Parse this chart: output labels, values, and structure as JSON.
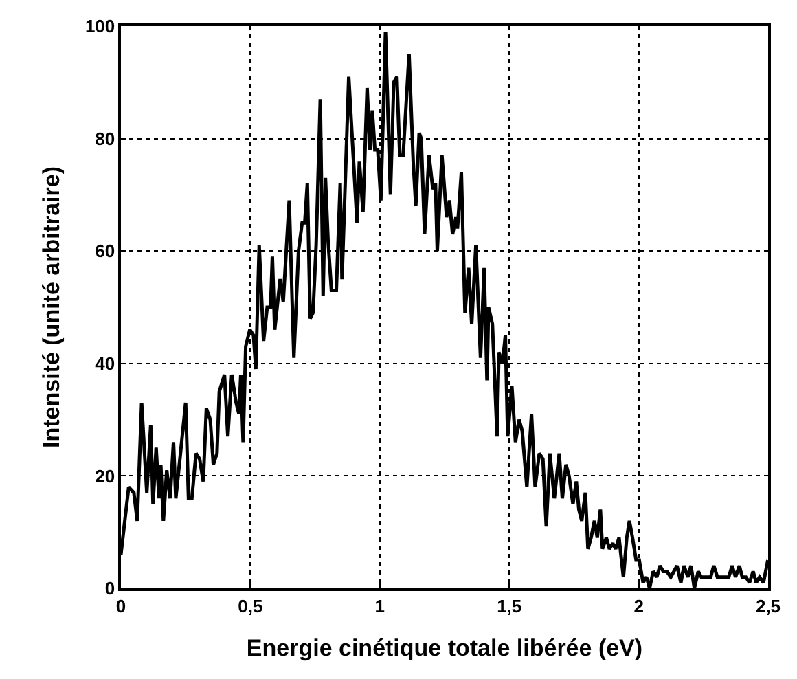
{
  "chart_data": {
    "type": "line",
    "xlabel": "Energie cinétique totale libérée (eV)",
    "ylabel": "Intensité (unité arbitraire)",
    "x": [
      0,
      0.03,
      0.05,
      0.063,
      0.08,
      0.1,
      0.115,
      0.124,
      0.136,
      0.147,
      0.154,
      0.164,
      0.177,
      0.19,
      0.203,
      0.212,
      0.23,
      0.25,
      0.261,
      0.274,
      0.29,
      0.304,
      0.318,
      0.33,
      0.345,
      0.357,
      0.371,
      0.38,
      0.4,
      0.413,
      0.428,
      0.445,
      0.456,
      0.463,
      0.472,
      0.482,
      0.498,
      0.512,
      0.521,
      0.534,
      0.551,
      0.565,
      0.578,
      0.585,
      0.594,
      0.615,
      0.627,
      0.65,
      0.668,
      0.686,
      0.7,
      0.71,
      0.72,
      0.731,
      0.742,
      0.754,
      0.77,
      0.781,
      0.79,
      0.8,
      0.813,
      0.832,
      0.847,
      0.854,
      0.88,
      0.912,
      0.921,
      0.935,
      0.951,
      0.962,
      0.971,
      0.981,
      0.992,
      1.004,
      1.022,
      1.041,
      1.054,
      1.066,
      1.077,
      1.09,
      1.113,
      1.129,
      1.139,
      1.152,
      1.16,
      1.173,
      1.19,
      1.205,
      1.215,
      1.222,
      1.24,
      1.258,
      1.269,
      1.281,
      1.294,
      1.3,
      1.315,
      1.329,
      1.343,
      1.355,
      1.371,
      1.389,
      1.403,
      1.414,
      1.42,
      1.435,
      1.453,
      1.46,
      1.474,
      1.485,
      1.494,
      1.51,
      1.524,
      1.538,
      1.55,
      1.568,
      1.586,
      1.6,
      1.616,
      1.63,
      1.643,
      1.657,
      1.674,
      1.693,
      1.705,
      1.719,
      1.731,
      1.746,
      1.759,
      1.769,
      1.78,
      1.794,
      1.804,
      1.816,
      1.829,
      1.84,
      1.852,
      1.86,
      1.875,
      1.887,
      1.9,
      1.911,
      1.924,
      1.941,
      1.954,
      1.964,
      1.976,
      1.99,
      2.002,
      2.017,
      2.03,
      2.042,
      2.056,
      2.07,
      2.082,
      2.095,
      2.109,
      2.124,
      2.136,
      2.148,
      2.163,
      2.175,
      2.19,
      2.202,
      2.215,
      2.23,
      2.242,
      2.26,
      2.278,
      2.29,
      2.304,
      2.318,
      2.33,
      2.348,
      2.361,
      2.374,
      2.389,
      2.4,
      2.414,
      2.428,
      2.442,
      2.454,
      2.467,
      2.482,
      2.499
    ],
    "series": [
      {
        "color": "#000000",
        "values": [
          6,
          18,
          17,
          12,
          33,
          17,
          29,
          15,
          25,
          16,
          22,
          12,
          21,
          16,
          26,
          16,
          24,
          33,
          16,
          16,
          24,
          23,
          19,
          32,
          30,
          22,
          24,
          35,
          38,
          27,
          38,
          33,
          31,
          38,
          26,
          43,
          46,
          45,
          39,
          61,
          44,
          50,
          50,
          59,
          46,
          55,
          51,
          69,
          41,
          60,
          65,
          65,
          72,
          48,
          49,
          61,
          87,
          52,
          73,
          62,
          53,
          53,
          72,
          55,
          91,
          65,
          76,
          67,
          89,
          78,
          85,
          78,
          78,
          69,
          99,
          70,
          90,
          91,
          77,
          77,
          95,
          76,
          68,
          81,
          80,
          63,
          77,
          71,
          72,
          60,
          77,
          66,
          69,
          63,
          66,
          64,
          74,
          49,
          57,
          47,
          61,
          41,
          57,
          37,
          50,
          47,
          27,
          42,
          40,
          45,
          27,
          36,
          26,
          30,
          28,
          18,
          31,
          18,
          24,
          23,
          11,
          24,
          16,
          24,
          16,
          22,
          20,
          15,
          19,
          14,
          12,
          17,
          7,
          9,
          12,
          9,
          14,
          7,
          9,
          7,
          8,
          7,
          9,
          2,
          9,
          12,
          9,
          5,
          5,
          1,
          2,
          0,
          3,
          2,
          4,
          3,
          3,
          2,
          3,
          4,
          1,
          4,
          2,
          4,
          0,
          3,
          2,
          2,
          2,
          4,
          2,
          2,
          2,
          2,
          4,
          2,
          4,
          2,
          2,
          1,
          3,
          1,
          2,
          1,
          5
        ]
      }
    ],
    "xlim": [
      0,
      2.5
    ],
    "xticks": [
      0,
      {
        "value": 0.5,
        "label": "0,5"
      },
      1,
      {
        "value": 1.5,
        "label": "1,5"
      },
      2,
      {
        "value": 2.5,
        "label": "2,5"
      }
    ],
    "ylim": [
      0,
      100
    ],
    "yticks": [
      0,
      20,
      40,
      60,
      80,
      100
    ],
    "grid": true,
    "line_style": "solid",
    "marker": "none"
  }
}
